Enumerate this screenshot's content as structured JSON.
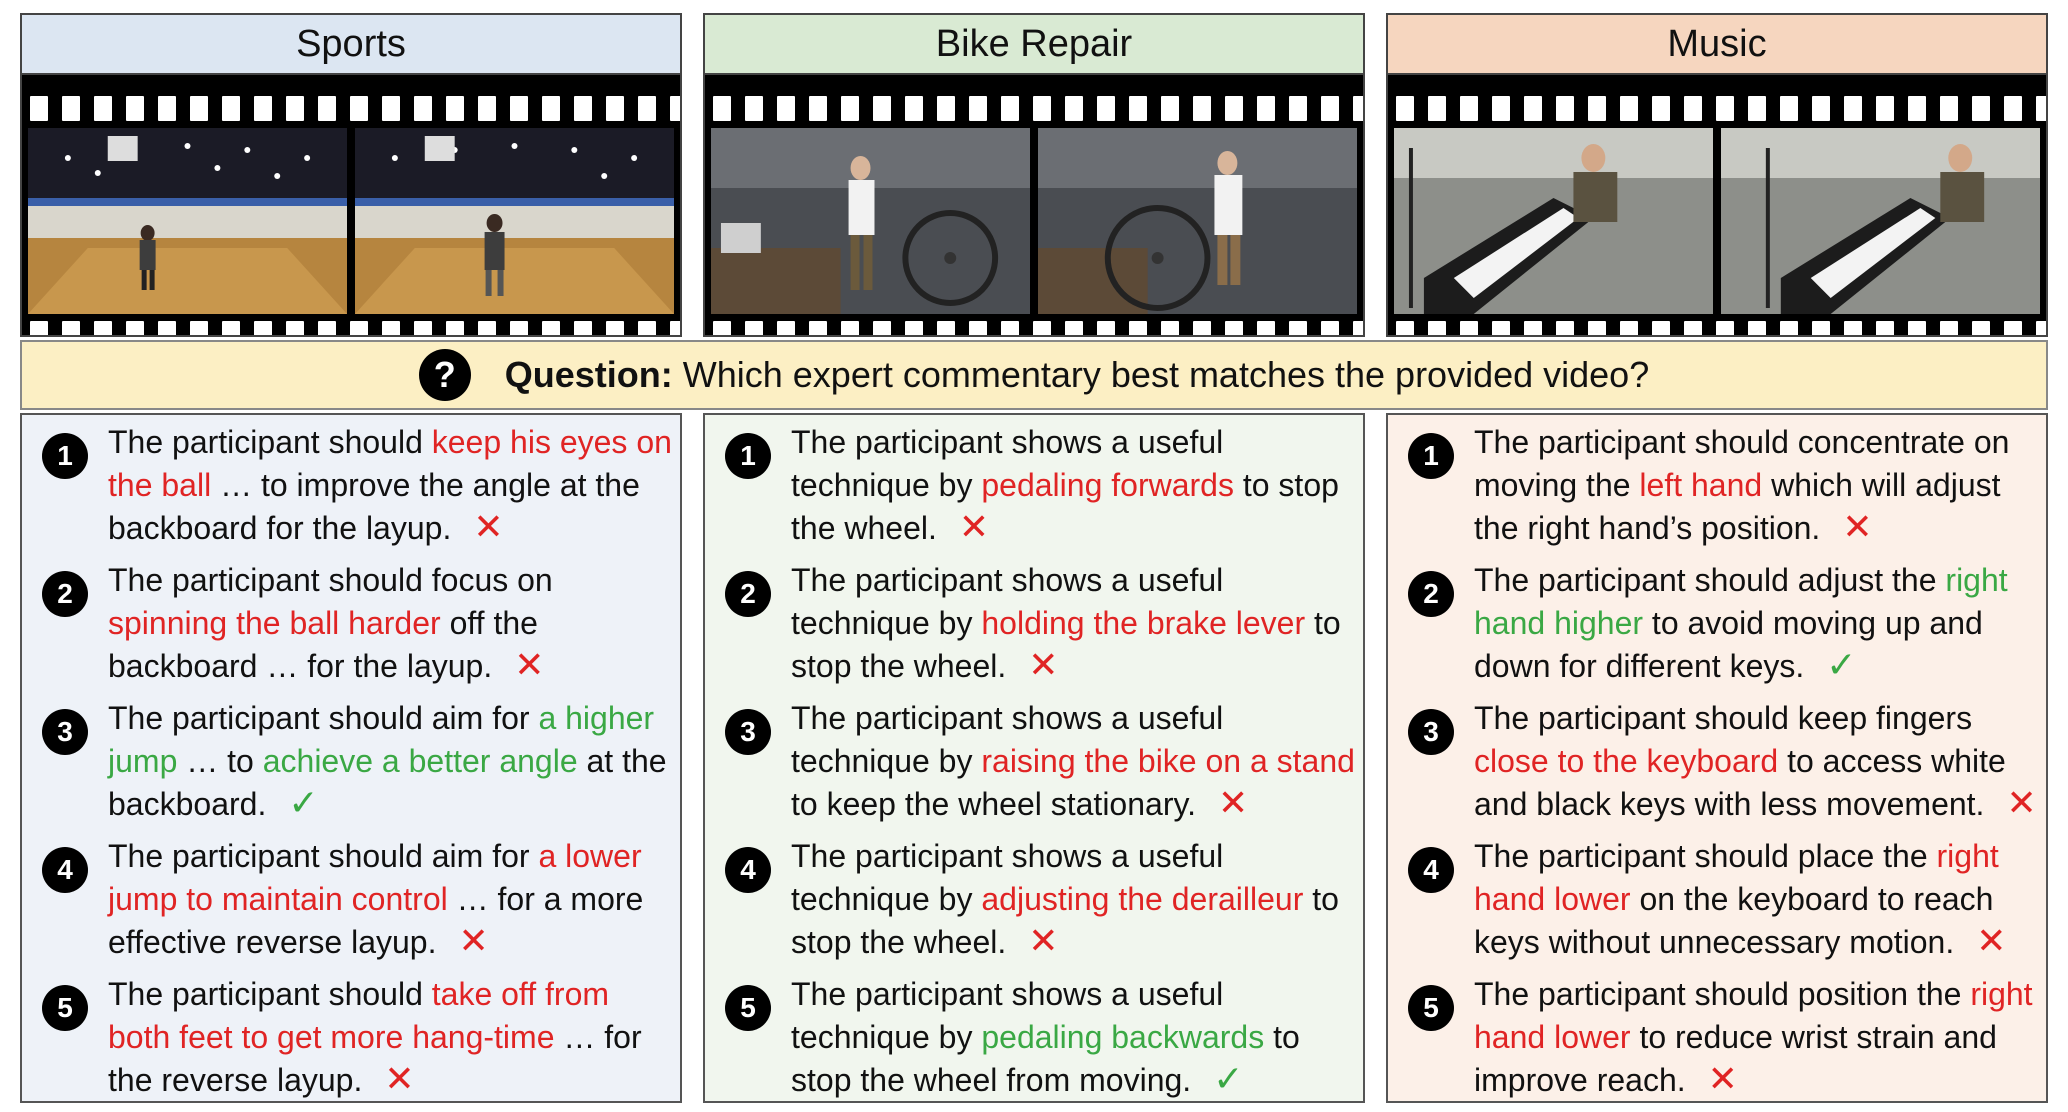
{
  "question": {
    "icon": "question-icon",
    "label": "Question:",
    "text": "Which expert commentary best matches the provided video?"
  },
  "columns": [
    {
      "title": "Sports",
      "header_color": "#dce6f2",
      "panel_color": "#eef2f8",
      "options": [
        {
          "num": "1",
          "mark": "wrong",
          "segments": [
            {
              "t": "The participant should ",
              "c": "n"
            },
            {
              "t": "keep his eyes on the ball",
              "c": "r"
            },
            {
              "t": " … to improve the angle at the backboard for the layup.",
              "c": "n"
            }
          ]
        },
        {
          "num": "2",
          "mark": "wrong",
          "segments": [
            {
              "t": "The participant should focus on ",
              "c": "n"
            },
            {
              "t": "spinning the ball harder",
              "c": "r"
            },
            {
              "t": " off the backboard … for the layup.",
              "c": "n"
            }
          ]
        },
        {
          "num": "3",
          "mark": "correct",
          "segments": [
            {
              "t": "The participant should aim for ",
              "c": "n"
            },
            {
              "t": "a higher jump",
              "c": "g"
            },
            {
              "t": " … to ",
              "c": "n"
            },
            {
              "t": "achieve a better angle",
              "c": "g"
            },
            {
              "t": " at the backboard.",
              "c": "n"
            }
          ]
        },
        {
          "num": "4",
          "mark": "wrong",
          "segments": [
            {
              "t": "The participant should aim for ",
              "c": "n"
            },
            {
              "t": "a lower jump to maintain control",
              "c": "r"
            },
            {
              "t": " … for a more effective reverse layup.",
              "c": "n"
            }
          ]
        },
        {
          "num": "5",
          "mark": "wrong",
          "segments": [
            {
              "t": "The participant should ",
              "c": "n"
            },
            {
              "t": "take off from both feet to get more hang-time",
              "c": "r"
            },
            {
              "t": " … for the reverse layup.",
              "c": "n"
            }
          ]
        }
      ]
    },
    {
      "title": "Bike Repair",
      "header_color": "#d9ead3",
      "panel_color": "#f1f6ee",
      "options": [
        {
          "num": "1",
          "mark": "wrong",
          "segments": [
            {
              "t": "The participant shows a useful technique by ",
              "c": "n"
            },
            {
              "t": "pedaling forwards",
              "c": "r"
            },
            {
              "t": " to stop the wheel.",
              "c": "n"
            }
          ]
        },
        {
          "num": "2",
          "mark": "wrong",
          "segments": [
            {
              "t": "The participant shows a useful technique by ",
              "c": "n"
            },
            {
              "t": "holding the brake lever",
              "c": "r"
            },
            {
              "t": " to stop the wheel.",
              "c": "n"
            }
          ]
        },
        {
          "num": "3",
          "mark": "wrong",
          "segments": [
            {
              "t": "The participant shows a useful technique by ",
              "c": "n"
            },
            {
              "t": "raising the bike on a stand",
              "c": "r"
            },
            {
              "t": " to keep the wheel stationary.",
              "c": "n"
            }
          ]
        },
        {
          "num": "4",
          "mark": "wrong",
          "segments": [
            {
              "t": "The participant shows a useful technique by ",
              "c": "n"
            },
            {
              "t": "adjusting the derailleur",
              "c": "r"
            },
            {
              "t": " to stop the wheel.",
              "c": "n"
            }
          ]
        },
        {
          "num": "5",
          "mark": "correct",
          "segments": [
            {
              "t": "The participant shows a useful technique by ",
              "c": "n"
            },
            {
              "t": "pedaling backwards",
              "c": "g"
            },
            {
              "t": " to stop the wheel from moving.",
              "c": "n"
            }
          ]
        }
      ]
    },
    {
      "title": "Music",
      "header_color": "#f6d6bf",
      "panel_color": "#fcf0e8",
      "options": [
        {
          "num": "1",
          "mark": "wrong",
          "segments": [
            {
              "t": "The participant should concentrate on moving the ",
              "c": "n"
            },
            {
              "t": "left hand",
              "c": "r"
            },
            {
              "t": " which will adjust the right hand’s position.",
              "c": "n"
            }
          ]
        },
        {
          "num": "2",
          "mark": "correct",
          "segments": [
            {
              "t": "The participant should adjust the ",
              "c": "n"
            },
            {
              "t": "right hand higher",
              "c": "g"
            },
            {
              "t": " to avoid moving up and down for different keys.",
              "c": "n"
            }
          ]
        },
        {
          "num": "3",
          "mark": "wrong",
          "segments": [
            {
              "t": "The participant should keep fingers ",
              "c": "n"
            },
            {
              "t": "close to the keyboard",
              "c": "r"
            },
            {
              "t": " to access white and black keys with less movement.",
              "c": "n"
            }
          ]
        },
        {
          "num": "4",
          "mark": "wrong",
          "segments": [
            {
              "t": "The participant should place the ",
              "c": "n"
            },
            {
              "t": "right hand lower",
              "c": "r"
            },
            {
              "t": " on the keyboard to reach keys without unnecessary motion.",
              "c": "n"
            }
          ]
        },
        {
          "num": "5",
          "mark": "wrong",
          "segments": [
            {
              "t": "The participant should position the ",
              "c": "n"
            },
            {
              "t": "right hand lower",
              "c": "r"
            },
            {
              "t": " to reduce wrist strain and improve reach.",
              "c": "n"
            }
          ]
        }
      ]
    }
  ],
  "marks": {
    "wrong": "✕",
    "correct": "✓"
  },
  "colors": {
    "wrong": "#e02424",
    "correct": "#3aa844"
  }
}
